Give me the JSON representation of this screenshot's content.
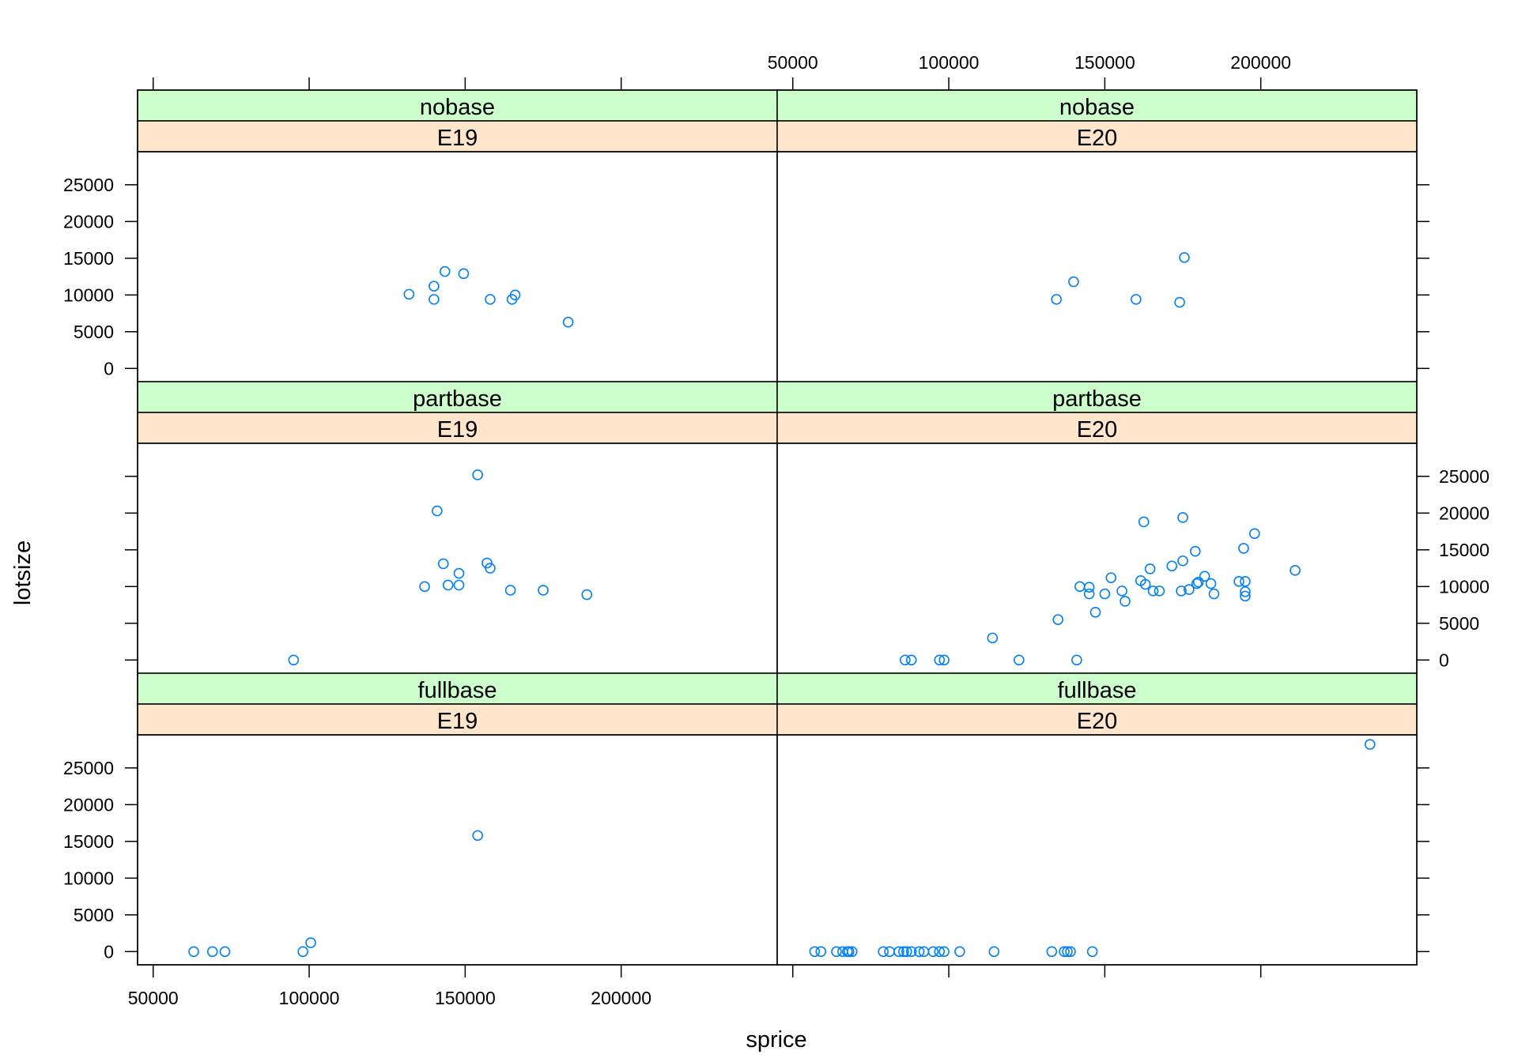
{
  "chart_data": {
    "type": "scatter",
    "xlabel": "sprice",
    "ylabel": "lotsize",
    "xlim": [
      45000,
      250000
    ],
    "ylim": [
      -1800,
      29500
    ],
    "x_ticks": [
      50000,
      100000,
      150000,
      200000
    ],
    "x_tick_labels": [
      "50000",
      "100000",
      "150000",
      "200000"
    ],
    "y_ticks": [
      0,
      5000,
      10000,
      15000,
      20000,
      25000
    ],
    "y_tick_labels": [
      "0",
      "5000",
      "10000",
      "15000",
      "20000",
      "25000"
    ],
    "grid": false,
    "colors": {
      "points": "#0080ff",
      "strip_outer": "#ccffcc",
      "strip_inner": "#ffe5cc",
      "frame": "#000000"
    },
    "panels": [
      {
        "row": 0,
        "col": 0,
        "outer": "nobase",
        "inner": "E19",
        "points": [
          [
            132000,
            10100
          ],
          [
            140000,
            11200
          ],
          [
            140000,
            9400
          ],
          [
            143500,
            13200
          ],
          [
            149500,
            12900
          ],
          [
            158000,
            9400
          ],
          [
            165000,
            9400
          ],
          [
            166000,
            10000
          ],
          [
            183000,
            6300
          ]
        ]
      },
      {
        "row": 0,
        "col": 1,
        "outer": "nobase",
        "inner": "E20",
        "points": [
          [
            134500,
            9400
          ],
          [
            140000,
            11800
          ],
          [
            160000,
            9400
          ],
          [
            174000,
            9000
          ],
          [
            175500,
            15100
          ]
        ]
      },
      {
        "row": 1,
        "col": 0,
        "outer": "partbase",
        "inner": "E19",
        "points": [
          [
            95000,
            0
          ],
          [
            137000,
            10000
          ],
          [
            141000,
            20300
          ],
          [
            143000,
            13100
          ],
          [
            144500,
            10200
          ],
          [
            148000,
            10200
          ],
          [
            148000,
            11800
          ],
          [
            154000,
            25200
          ],
          [
            157000,
            13200
          ],
          [
            158000,
            12500
          ],
          [
            164500,
            9500
          ],
          [
            175000,
            9500
          ],
          [
            189000,
            8900
          ]
        ]
      },
      {
        "row": 1,
        "col": 1,
        "outer": "partbase",
        "inner": "E20",
        "points": [
          [
            86000,
            0
          ],
          [
            88000,
            0
          ],
          [
            97000,
            0
          ],
          [
            98500,
            0
          ],
          [
            114000,
            3000
          ],
          [
            122500,
            0
          ],
          [
            135000,
            5500
          ],
          [
            141000,
            0
          ],
          [
            142000,
            10000
          ],
          [
            145000,
            9900
          ],
          [
            145000,
            9000
          ],
          [
            147000,
            6500
          ],
          [
            150000,
            9000
          ],
          [
            152000,
            11200
          ],
          [
            155500,
            9400
          ],
          [
            156500,
            8000
          ],
          [
            161500,
            10800
          ],
          [
            162500,
            18800
          ],
          [
            163000,
            10300
          ],
          [
            164500,
            12400
          ],
          [
            165500,
            9400
          ],
          [
            167500,
            9400
          ],
          [
            171500,
            12800
          ],
          [
            174500,
            9400
          ],
          [
            175000,
            13500
          ],
          [
            175000,
            19400
          ],
          [
            177000,
            9600
          ],
          [
            179000,
            14800
          ],
          [
            179500,
            10400
          ],
          [
            180000,
            10600
          ],
          [
            182000,
            11400
          ],
          [
            184000,
            10400
          ],
          [
            185000,
            9000
          ],
          [
            193000,
            10700
          ],
          [
            194500,
            15200
          ],
          [
            195000,
            10700
          ],
          [
            195000,
            9300
          ],
          [
            195000,
            8700
          ],
          [
            198000,
            17200
          ],
          [
            211000,
            12200
          ]
        ]
      },
      {
        "row": 2,
        "col": 0,
        "outer": "fullbase",
        "inner": "E19",
        "points": [
          [
            63000,
            0
          ],
          [
            69000,
            0
          ],
          [
            73000,
            0
          ],
          [
            98000,
            0
          ],
          [
            100500,
            1200
          ],
          [
            154000,
            15800
          ]
        ]
      },
      {
        "row": 2,
        "col": 1,
        "outer": "fullbase",
        "inner": "E20",
        "points": [
          [
            57000,
            0
          ],
          [
            59000,
            0
          ],
          [
            64000,
            0
          ],
          [
            66000,
            0
          ],
          [
            67500,
            0
          ],
          [
            68000,
            0
          ],
          [
            69000,
            0
          ],
          [
            79000,
            0
          ],
          [
            81000,
            0
          ],
          [
            84000,
            0
          ],
          [
            85500,
            0
          ],
          [
            86500,
            0
          ],
          [
            88000,
            0
          ],
          [
            90500,
            0
          ],
          [
            92000,
            0
          ],
          [
            95000,
            0
          ],
          [
            97000,
            0
          ],
          [
            98500,
            0
          ],
          [
            103500,
            0
          ],
          [
            114500,
            0
          ],
          [
            133000,
            0
          ],
          [
            137000,
            0
          ],
          [
            138000,
            0
          ],
          [
            139000,
            0
          ],
          [
            146000,
            0
          ],
          [
            235000,
            28200
          ]
        ]
      }
    ]
  }
}
